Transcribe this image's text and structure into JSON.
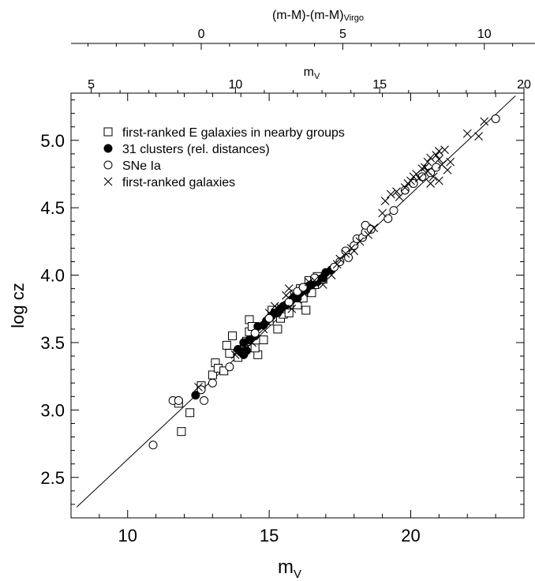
{
  "chart_data": {
    "type": "scatter",
    "xlabel": "m",
    "xlabel_sub": "V",
    "ylabel": "log cz",
    "xlim": [
      8,
      24
    ],
    "ylim": [
      2.2,
      5.35
    ],
    "x_ticks": [
      "10",
      "15",
      "20"
    ],
    "y_ticks": [
      "2.5",
      "3.0",
      "3.5",
      "4.0",
      "4.5",
      "5.0"
    ],
    "top_axis_inner": {
      "label": "m",
      "label_sub": "V",
      "range": [
        4.3,
        20
      ],
      "ticks": [
        "5",
        "10",
        "15",
        "20"
      ]
    },
    "top_axis_outer": {
      "label": "(m-M)-(m-M)",
      "label_sub": "Virgo",
      "range": [
        -4.6,
        11.4
      ],
      "ticks": [
        "0",
        "5",
        "10"
      ]
    },
    "legend_position": "top-left",
    "series": [
      {
        "name": "first-ranked E galaxies in nearby groups",
        "marker": "open-square",
        "points": [
          [
            11.8,
            3.05
          ],
          [
            11.9,
            2.84
          ],
          [
            12.2,
            2.98
          ],
          [
            12.6,
            3.18
          ],
          [
            13.0,
            3.26
          ],
          [
            13.1,
            3.35
          ],
          [
            13.2,
            3.31
          ],
          [
            13.4,
            3.29
          ],
          [
            13.6,
            3.42
          ],
          [
            13.5,
            3.48
          ],
          [
            13.7,
            3.55
          ],
          [
            13.9,
            3.39
          ],
          [
            14.1,
            3.45
          ],
          [
            14.2,
            3.51
          ],
          [
            14.3,
            3.58
          ],
          [
            14.3,
            3.67
          ],
          [
            14.4,
            3.62
          ],
          [
            14.6,
            3.41
          ],
          [
            14.5,
            3.46
          ],
          [
            14.8,
            3.52
          ],
          [
            15.0,
            3.66
          ],
          [
            15.1,
            3.74
          ],
          [
            15.3,
            3.6
          ],
          [
            15.4,
            3.68
          ],
          [
            15.5,
            3.71
          ],
          [
            15.6,
            3.75
          ],
          [
            15.8,
            3.8
          ],
          [
            15.9,
            3.86
          ],
          [
            16.0,
            3.78
          ],
          [
            16.1,
            3.9
          ],
          [
            16.2,
            3.83
          ],
          [
            16.3,
            3.74
          ],
          [
            16.4,
            3.96
          ],
          [
            16.5,
            3.87
          ],
          [
            16.6,
            3.93
          ],
          [
            16.7,
            3.99
          ],
          [
            15.7,
            3.72
          ],
          [
            16.9,
            3.97
          ]
        ]
      },
      {
        "name": "31 clusters (rel. distances)",
        "marker": "filled-circle",
        "points": [
          [
            12.4,
            3.11
          ],
          [
            14.0,
            3.43
          ],
          [
            14.1,
            3.5
          ],
          [
            14.3,
            3.52
          ],
          [
            14.5,
            3.55
          ],
          [
            14.6,
            3.62
          ],
          [
            14.8,
            3.63
          ],
          [
            14.9,
            3.66
          ],
          [
            15.0,
            3.68
          ],
          [
            15.1,
            3.7
          ],
          [
            15.2,
            3.72
          ],
          [
            15.3,
            3.72
          ],
          [
            15.4,
            3.75
          ],
          [
            15.5,
            3.77
          ],
          [
            15.7,
            3.8
          ],
          [
            15.8,
            3.82
          ],
          [
            15.9,
            3.84
          ],
          [
            16.0,
            3.83
          ],
          [
            16.1,
            3.87
          ],
          [
            16.3,
            3.89
          ],
          [
            16.4,
            3.92
          ],
          [
            16.5,
            3.93
          ],
          [
            16.7,
            3.95
          ],
          [
            16.9,
            3.98
          ],
          [
            17.0,
            4.02
          ],
          [
            17.2,
            4.04
          ],
          [
            14.1,
            3.41
          ],
          [
            13.9,
            3.45
          ],
          [
            14.2,
            3.44
          ],
          [
            15.6,
            3.78
          ],
          [
            16.2,
            3.91
          ]
        ]
      },
      {
        "name": "SNe Ia",
        "marker": "open-circle",
        "points": [
          [
            10.9,
            2.74
          ],
          [
            11.6,
            3.07
          ],
          [
            11.8,
            3.07
          ],
          [
            12.6,
            3.15
          ],
          [
            12.7,
            3.07
          ],
          [
            13.0,
            3.2
          ],
          [
            13.6,
            3.32
          ],
          [
            14.5,
            3.57
          ],
          [
            15.0,
            3.68
          ],
          [
            15.7,
            3.8
          ],
          [
            16.0,
            3.88
          ],
          [
            16.2,
            3.91
          ],
          [
            16.6,
            3.98
          ],
          [
            17.3,
            4.06
          ],
          [
            17.5,
            4.1
          ],
          [
            17.7,
            4.18
          ],
          [
            17.8,
            4.13
          ],
          [
            18.0,
            4.22
          ],
          [
            18.1,
            4.27
          ],
          [
            18.3,
            4.28
          ],
          [
            18.4,
            4.32
          ],
          [
            18.4,
            4.37
          ],
          [
            18.6,
            4.34
          ],
          [
            19.2,
            4.42
          ],
          [
            19.4,
            4.48
          ],
          [
            19.8,
            4.63
          ],
          [
            20.1,
            4.68
          ],
          [
            20.4,
            4.73
          ],
          [
            20.7,
            4.76
          ],
          [
            20.9,
            4.8
          ],
          [
            23.0,
            5.16
          ]
        ]
      },
      {
        "name": "first-ranked galaxies",
        "marker": "cross",
        "points": [
          [
            12.5,
            3.17
          ],
          [
            13.8,
            3.41
          ],
          [
            14.1,
            3.47
          ],
          [
            14.4,
            3.5
          ],
          [
            14.8,
            3.6
          ],
          [
            15.0,
            3.72
          ],
          [
            15.2,
            3.77
          ],
          [
            15.4,
            3.76
          ],
          [
            15.6,
            3.85
          ],
          [
            15.7,
            3.9
          ],
          [
            15.8,
            3.75
          ],
          [
            16.0,
            3.82
          ],
          [
            16.2,
            3.87
          ],
          [
            16.4,
            3.95
          ],
          [
            16.6,
            3.96
          ],
          [
            16.8,
            3.98
          ],
          [
            16.9,
            3.93
          ],
          [
            17.2,
            4.0
          ],
          [
            17.4,
            4.08
          ],
          [
            17.5,
            4.12
          ],
          [
            17.7,
            4.16
          ],
          [
            17.9,
            4.2
          ],
          [
            18.0,
            4.18
          ],
          [
            18.2,
            4.25
          ],
          [
            18.5,
            4.3
          ],
          [
            18.7,
            4.35
          ],
          [
            19.0,
            4.46
          ],
          [
            19.1,
            4.55
          ],
          [
            19.3,
            4.6
          ],
          [
            19.5,
            4.62
          ],
          [
            19.6,
            4.58
          ],
          [
            19.8,
            4.65
          ],
          [
            19.9,
            4.68
          ],
          [
            20.0,
            4.7
          ],
          [
            20.1,
            4.73
          ],
          [
            20.2,
            4.75
          ],
          [
            20.3,
            4.72
          ],
          [
            20.4,
            4.79
          ],
          [
            20.5,
            4.8
          ],
          [
            20.6,
            4.84
          ],
          [
            20.6,
            4.77
          ],
          [
            20.7,
            4.87
          ],
          [
            20.8,
            4.73
          ],
          [
            20.9,
            4.89
          ],
          [
            21.0,
            4.86
          ],
          [
            21.0,
            4.92
          ],
          [
            21.1,
            4.82
          ],
          [
            21.2,
            4.93
          ],
          [
            21.0,
            4.7
          ],
          [
            20.7,
            4.68
          ],
          [
            21.3,
            4.78
          ],
          [
            22.0,
            5.05
          ],
          [
            22.4,
            5.03
          ],
          [
            22.6,
            5.14
          ],
          [
            21.4,
            4.84
          ]
        ]
      }
    ],
    "fit_line": {
      "x": [
        8.2,
        23.7
      ],
      "y": [
        2.28,
        5.33
      ]
    }
  }
}
